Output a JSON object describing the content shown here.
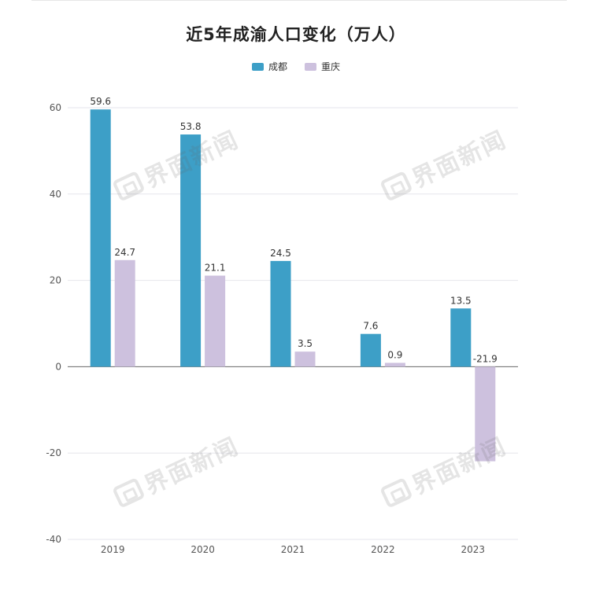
{
  "watermark": "界面新闻",
  "chart_data": {
    "type": "bar",
    "title": "近5年成渝人口变化（万人）",
    "categories": [
      "2019",
      "2020",
      "2021",
      "2022",
      "2023"
    ],
    "series": [
      {
        "name": "成都",
        "color": "#3d9fc7",
        "values": [
          59.6,
          53.8,
          24.5,
          7.6,
          13.5
        ],
        "labels": [
          "59.6",
          "53.8",
          "24.5",
          "7.6",
          "13.5"
        ]
      },
      {
        "name": "重庆",
        "color": "#cdc1de",
        "values": [
          24.7,
          21.1,
          3.5,
          0.9,
          -21.9
        ],
        "labels": [
          "24.7",
          "21.1",
          "3.5",
          "0.9",
          "-21.9"
        ]
      }
    ],
    "ylim": [
      -40,
      60
    ],
    "yticks": [
      "-40",
      "-20",
      "0",
      "20",
      "40",
      "60"
    ],
    "grid": true,
    "legend_position": "top-center",
    "xlabel": "",
    "ylabel": ""
  }
}
